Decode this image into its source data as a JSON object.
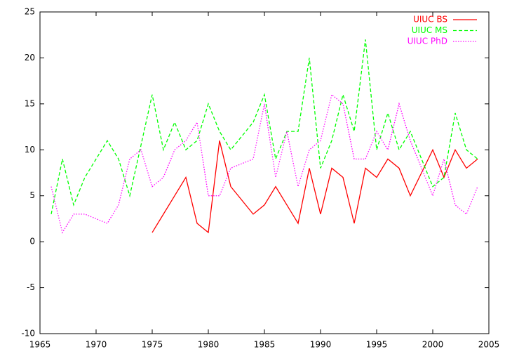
{
  "chart_data": {
    "type": "line",
    "x": [
      1966,
      1967,
      1968,
      1969,
      1970,
      1971,
      1972,
      1973,
      1974,
      1975,
      1976,
      1977,
      1978,
      1979,
      1980,
      1981,
      1982,
      1983,
      1984,
      1985,
      1986,
      1987,
      1988,
      1989,
      1990,
      1991,
      1992,
      1993,
      1994,
      1995,
      1996,
      1997,
      1998,
      1999,
      2000,
      2001,
      2002,
      2003,
      2004
    ],
    "series": [
      {
        "name": "UIUC BS",
        "color": "#ff0000",
        "style": "solid",
        "values": [
          null,
          null,
          null,
          null,
          null,
          null,
          null,
          null,
          null,
          1,
          3,
          5,
          7,
          2,
          1,
          11,
          6,
          4.5,
          3,
          4,
          6,
          4,
          2,
          8,
          3,
          8,
          7,
          2,
          8,
          7,
          9,
          8,
          5,
          7.5,
          10,
          7,
          10,
          8,
          9
        ]
      },
      {
        "name": "UIUC MS",
        "color": "#00ff00",
        "style": "dashed",
        "values": [
          3,
          9,
          4,
          7,
          9,
          11,
          9,
          5,
          10.5,
          16,
          10,
          13,
          10,
          11,
          15,
          12,
          10,
          11.5,
          13,
          16,
          9,
          12,
          12,
          20,
          8,
          11,
          16,
          12,
          22,
          10,
          14,
          10,
          12,
          9,
          6,
          7,
          14,
          10,
          9
        ]
      },
      {
        "name": "UIUC PhD",
        "color": "#ff00ff",
        "style": "dotted",
        "values": [
          6,
          1,
          3,
          3,
          2.5,
          2,
          4,
          9,
          10,
          6,
          7,
          10,
          11,
          13,
          5,
          5,
          8,
          8.5,
          9,
          15,
          7,
          12,
          6,
          10,
          11,
          16,
          15,
          9,
          9,
          12,
          10,
          15,
          11,
          8,
          5,
          9,
          4,
          3,
          6
        ]
      }
    ],
    "xlim": [
      1965,
      2005
    ],
    "xticks": [
      1965,
      1970,
      1975,
      1980,
      1985,
      1990,
      1995,
      2000,
      2005
    ],
    "ylim": [
      -10,
      25
    ],
    "yticks": [
      -10,
      -5,
      0,
      5,
      10,
      15,
      20,
      25
    ],
    "grid": false,
    "legend": "top-right"
  }
}
